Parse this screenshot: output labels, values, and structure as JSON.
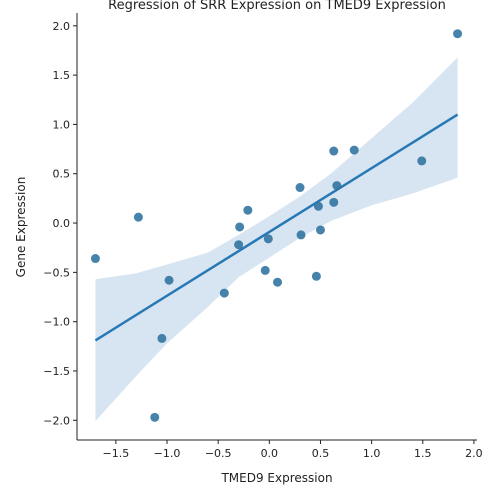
{
  "chart_data": {
    "type": "scatter",
    "title": "Regression of SRR Expression on TMED9 Expression",
    "xlabel": "TMED9 Expression",
    "ylabel": "Gene Expression",
    "xlim": [
      -1.88,
      2.03
    ],
    "ylim": [
      -2.2,
      2.13
    ],
    "xticks": [
      -1.5,
      -1.0,
      -0.5,
      0.0,
      0.5,
      1.0,
      1.5,
      2.0
    ],
    "xtick_labels": [
      "−1.5",
      "−1.0",
      "−0.5",
      "0.0",
      "0.5",
      "1.0",
      "1.5",
      "2.0"
    ],
    "yticks": [
      -2.0,
      -1.5,
      -1.0,
      -0.5,
      0.0,
      0.5,
      1.0,
      1.5,
      2.0
    ],
    "ytick_labels": [
      "−2.0",
      "−1.5",
      "−1.0",
      "−0.5",
      "0.0",
      "0.5",
      "1.0",
      "1.5",
      "2.0"
    ],
    "grid": false,
    "points": [
      {
        "x": -1.7,
        "y": -0.36
      },
      {
        "x": -1.28,
        "y": 0.06
      },
      {
        "x": -1.12,
        "y": -1.97
      },
      {
        "x": -1.05,
        "y": -1.17
      },
      {
        "x": -0.98,
        "y": -0.58
      },
      {
        "x": -0.44,
        "y": -0.71
      },
      {
        "x": -0.29,
        "y": -0.04
      },
      {
        "x": -0.3,
        "y": -0.22
      },
      {
        "x": -0.21,
        "y": 0.13
      },
      {
        "x": -0.04,
        "y": -0.48
      },
      {
        "x": -0.01,
        "y": -0.16
      },
      {
        "x": 0.08,
        "y": -0.6
      },
      {
        "x": 0.3,
        "y": 0.36
      },
      {
        "x": 0.31,
        "y": -0.12
      },
      {
        "x": 0.46,
        "y": -0.54
      },
      {
        "x": 0.48,
        "y": 0.17
      },
      {
        "x": 0.5,
        "y": -0.07
      },
      {
        "x": 0.63,
        "y": 0.21
      },
      {
        "x": 0.63,
        "y": 0.73
      },
      {
        "x": 0.66,
        "y": 0.38
      },
      {
        "x": 0.83,
        "y": 0.74
      },
      {
        "x": 1.49,
        "y": 0.63
      },
      {
        "x": 1.84,
        "y": 1.92
      }
    ],
    "regression": {
      "x0": -1.7,
      "y0": -1.19,
      "x1": 1.84,
      "y1": 1.1
    },
    "confidence_band": [
      {
        "x": -1.7,
        "lower": -2.01,
        "upper": -0.57
      },
      {
        "x": -1.3,
        "lower": -1.55,
        "upper": -0.51
      },
      {
        "x": -1.0,
        "lower": -1.22,
        "upper": -0.42
      },
      {
        "x": -0.6,
        "lower": -0.85,
        "upper": -0.3
      },
      {
        "x": -0.3,
        "lower": -0.55,
        "upper": -0.12
      },
      {
        "x": 0.0,
        "lower": -0.35,
        "upper": 0.07
      },
      {
        "x": 0.3,
        "lower": -0.15,
        "upper": 0.27
      },
      {
        "x": 0.6,
        "lower": 0.02,
        "upper": 0.5
      },
      {
        "x": 1.0,
        "lower": 0.18,
        "upper": 0.86
      },
      {
        "x": 1.4,
        "lower": 0.3,
        "upper": 1.22
      },
      {
        "x": 1.84,
        "lower": 0.46,
        "upper": 1.68
      }
    ],
    "colors": {
      "points": "#3274a1",
      "line": "#2878b5",
      "band": "#bcd4ea",
      "axis": "#222222"
    }
  }
}
